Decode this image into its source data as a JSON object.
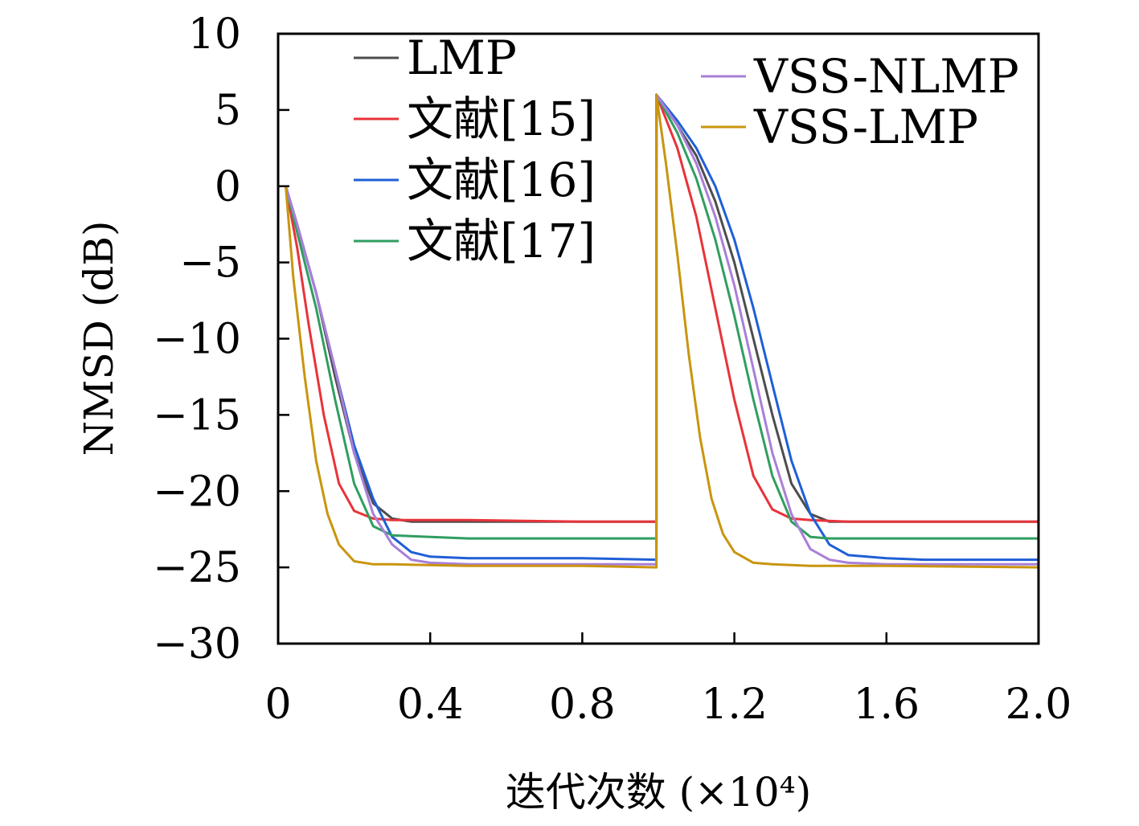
{
  "chart_data": {
    "type": "line",
    "xlabel": "迭代次数 (×10⁴)",
    "ylabel": "NMSD (dB)",
    "xlim": [
      0,
      2.0
    ],
    "ylim": [
      -30,
      10
    ],
    "xticks": [
      0,
      0.4,
      0.8,
      1.2,
      1.6,
      2.0
    ],
    "xtick_labels": [
      "0",
      "0.4",
      "0.8",
      "1.2",
      "1.6",
      "2.0"
    ],
    "yticks": [
      10,
      5,
      0,
      -5,
      -10,
      -15,
      -20,
      -25,
      -30
    ],
    "ytick_labels": [
      "10",
      "5",
      "0",
      "−5",
      "−10",
      "−15",
      "−20",
      "−25",
      "−30"
    ],
    "grid": false,
    "legend_placement": "top",
    "series": [
      {
        "name": "LMP",
        "color": "#4d4d4d",
        "x": [
          0.02,
          0.05,
          0.1,
          0.15,
          0.2,
          0.25,
          0.3,
          0.35,
          0.5,
          0.8,
          0.995,
          0.995,
          1.05,
          1.1,
          1.15,
          1.2,
          1.25,
          1.3,
          1.35,
          1.4,
          1.45,
          1.5,
          1.7,
          2.0
        ],
        "y": [
          0,
          -2.5,
          -7,
          -12.5,
          -17.5,
          -20.8,
          -21.8,
          -22,
          -22,
          -22,
          -22,
          6,
          4,
          2,
          -1,
          -5,
          -10,
          -15,
          -19.5,
          -21.5,
          -22,
          -22,
          -22,
          -22
        ]
      },
      {
        "name": "文献[15]",
        "color": "#e8333a",
        "x": [
          0.02,
          0.05,
          0.08,
          0.12,
          0.16,
          0.2,
          0.25,
          0.3,
          0.5,
          0.8,
          0.995,
          0.995,
          1.05,
          1.1,
          1.15,
          1.2,
          1.25,
          1.3,
          1.35,
          1.4,
          1.5,
          1.7,
          2.0
        ],
        "y": [
          0,
          -4,
          -9,
          -15,
          -19.5,
          -21.3,
          -21.8,
          -21.9,
          -21.9,
          -22,
          -22,
          6,
          2.5,
          -2,
          -8,
          -14,
          -19,
          -21.2,
          -21.8,
          -21.9,
          -22,
          -22,
          -22
        ]
      },
      {
        "name": "文献[16]",
        "color": "#1f5fd6",
        "x": [
          0.02,
          0.05,
          0.1,
          0.15,
          0.2,
          0.25,
          0.3,
          0.35,
          0.4,
          0.5,
          0.8,
          0.995,
          0.995,
          1.05,
          1.1,
          1.15,
          1.2,
          1.25,
          1.3,
          1.35,
          1.4,
          1.45,
          1.5,
          1.6,
          1.7,
          2.0
        ],
        "y": [
          0,
          -2.5,
          -7,
          -12,
          -17,
          -20.5,
          -23,
          -24,
          -24.3,
          -24.4,
          -24.4,
          -24.5,
          6,
          4.3,
          2.5,
          0,
          -3.5,
          -8,
          -13,
          -18,
          -21.5,
          -23.5,
          -24.2,
          -24.4,
          -24.5,
          -24.5
        ]
      },
      {
        "name": "文献[17]",
        "color": "#2f9e60",
        "x": [
          0.02,
          0.05,
          0.1,
          0.15,
          0.2,
          0.25,
          0.3,
          0.5,
          0.8,
          0.995,
          0.995,
          1.05,
          1.1,
          1.15,
          1.2,
          1.25,
          1.3,
          1.35,
          1.4,
          1.45,
          1.5,
          1.7,
          2.0
        ],
        "y": [
          0,
          -3,
          -8,
          -14,
          -19.5,
          -22.3,
          -22.9,
          -23.1,
          -23.1,
          -23.1,
          6,
          3.5,
          0.5,
          -3.5,
          -8.5,
          -14,
          -19,
          -22,
          -23,
          -23.1,
          -23.1,
          -23.1,
          -23.1
        ]
      },
      {
        "name": "VSS-NLMP",
        "color": "#a97fd8",
        "x": [
          0.02,
          0.05,
          0.1,
          0.15,
          0.2,
          0.25,
          0.3,
          0.35,
          0.4,
          0.5,
          0.8,
          0.995,
          0.995,
          1.05,
          1.1,
          1.15,
          1.2,
          1.25,
          1.3,
          1.35,
          1.4,
          1.45,
          1.5,
          1.6,
          2.0
        ],
        "y": [
          0,
          -2.5,
          -7,
          -12,
          -17.5,
          -21.5,
          -23.5,
          -24.5,
          -24.7,
          -24.8,
          -24.8,
          -24.8,
          6,
          4,
          1.5,
          -2,
          -6.5,
          -12,
          -17.5,
          -21.5,
          -23.8,
          -24.5,
          -24.7,
          -24.8,
          -24.8
        ]
      },
      {
        "name": "VSS-LMP",
        "color": "#c9950f",
        "x": [
          0.02,
          0.04,
          0.07,
          0.1,
          0.13,
          0.16,
          0.2,
          0.25,
          0.3,
          0.5,
          0.8,
          0.995,
          0.995,
          1.02,
          1.05,
          1.08,
          1.11,
          1.14,
          1.17,
          1.2,
          1.25,
          1.3,
          1.4,
          1.6,
          2.0
        ],
        "y": [
          0,
          -6,
          -12.5,
          -18,
          -21.5,
          -23.5,
          -24.6,
          -24.8,
          -24.8,
          -24.9,
          -24.9,
          -25,
          6,
          1.5,
          -4.5,
          -11,
          -16.5,
          -20.5,
          -22.8,
          -24,
          -24.7,
          -24.8,
          -24.9,
          -24.9,
          -25
        ]
      }
    ]
  }
}
